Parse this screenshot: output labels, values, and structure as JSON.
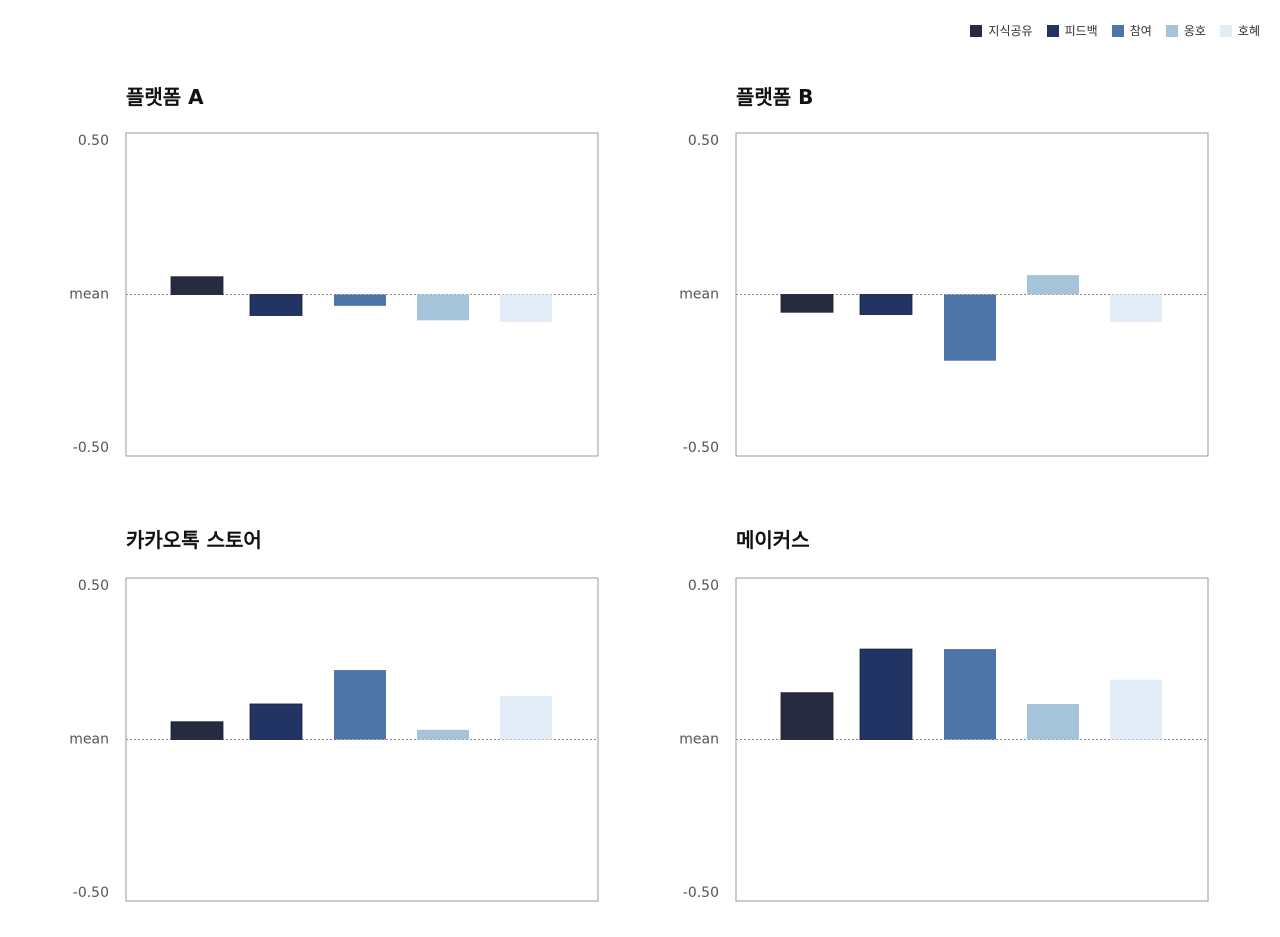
{
  "chart_data": {
    "type": "bar",
    "categories": [
      "지식공유",
      "피드백",
      "참여",
      "옹호",
      "호혜"
    ],
    "colors": [
      "#272b3f",
      "#223463",
      "#4e75a8",
      "#a6c4d9",
      "#e3edf8"
    ],
    "ylim": [
      -0.5,
      0.5
    ],
    "ytick_labels": [
      "0.50",
      "mean",
      "-0.50"
    ],
    "legend_position": "top-right",
    "panels": [
      {
        "title": "플랫폼 A",
        "values": [
          0.055,
          -0.065,
          -0.035,
          -0.08,
          -0.085
        ]
      },
      {
        "title": "플랫폼 B",
        "values": [
          -0.055,
          -0.062,
          -0.205,
          0.06,
          -0.085
        ]
      },
      {
        "title": "카카오톡 스토어",
        "values": [
          0.055,
          0.11,
          0.215,
          0.03,
          0.135
        ]
      },
      {
        "title": "메이커스",
        "values": [
          0.145,
          0.28,
          0.28,
          0.11,
          0.185
        ]
      }
    ]
  }
}
